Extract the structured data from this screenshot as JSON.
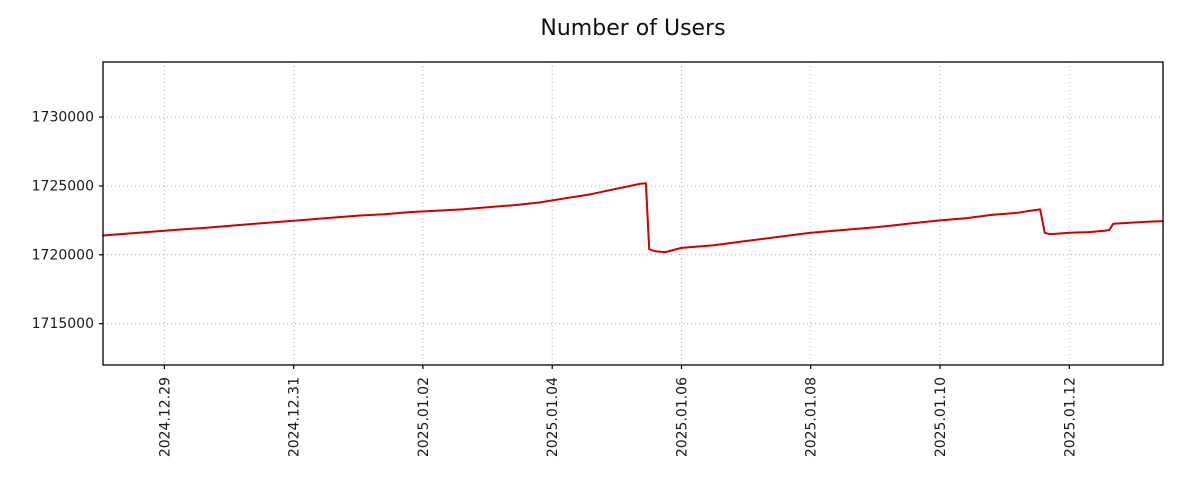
{
  "chart_data": {
    "type": "line",
    "title": "Number of Users",
    "xlabel": "",
    "ylabel": "",
    "legend_position": "none",
    "grid": "dotted",
    "grid_color": "#b0b0b0",
    "frame_color": "#000000",
    "background": "#ffffff",
    "x_unit": "days since 2024-12-28 00:00",
    "xlim": [
      0.05,
      16.45
    ],
    "ylim": [
      1712000,
      1734000
    ],
    "y_ticks": [
      1715000,
      1720000,
      1725000,
      1730000
    ],
    "x_ticks": [
      {
        "pos": 1,
        "label": "2024.12.29"
      },
      {
        "pos": 3,
        "label": "2024.12.31"
      },
      {
        "pos": 5,
        "label": "2025.01.02"
      },
      {
        "pos": 7,
        "label": "2025.01.04"
      },
      {
        "pos": 9,
        "label": "2025.01.06"
      },
      {
        "pos": 11,
        "label": "2025.01.08"
      },
      {
        "pos": 13,
        "label": "2025.01.10"
      },
      {
        "pos": 15,
        "label": "2025.01.12"
      }
    ],
    "series": [
      {
        "name": "Number of Users",
        "color": "#cc0000",
        "line_width": 2,
        "points": [
          [
            0.05,
            1721400
          ],
          [
            0.3,
            1721500
          ],
          [
            0.6,
            1721600
          ],
          [
            1.0,
            1721750
          ],
          [
            1.3,
            1721850
          ],
          [
            1.6,
            1721950
          ],
          [
            2.0,
            1722100
          ],
          [
            2.4,
            1722250
          ],
          [
            2.8,
            1722400
          ],
          [
            3.2,
            1722550
          ],
          [
            3.6,
            1722700
          ],
          [
            4.0,
            1722850
          ],
          [
            4.4,
            1722950
          ],
          [
            4.8,
            1723100
          ],
          [
            5.2,
            1723200
          ],
          [
            5.6,
            1723300
          ],
          [
            6.0,
            1723450
          ],
          [
            6.4,
            1723600
          ],
          [
            6.8,
            1723800
          ],
          [
            7.2,
            1724100
          ],
          [
            7.6,
            1724400
          ],
          [
            8.0,
            1724800
          ],
          [
            8.2,
            1725000
          ],
          [
            8.35,
            1725150
          ],
          [
            8.45,
            1725200
          ],
          [
            8.5,
            1720400
          ],
          [
            8.6,
            1720250
          ],
          [
            8.75,
            1720200
          ],
          [
            9.0,
            1720500
          ],
          [
            9.5,
            1720700
          ],
          [
            10.0,
            1721000
          ],
          [
            10.5,
            1721300
          ],
          [
            11.0,
            1721600
          ],
          [
            11.5,
            1721800
          ],
          [
            12.0,
            1722000
          ],
          [
            12.5,
            1722250
          ],
          [
            13.0,
            1722500
          ],
          [
            13.4,
            1722650
          ],
          [
            13.8,
            1722900
          ],
          [
            14.2,
            1723050
          ],
          [
            14.4,
            1723200
          ],
          [
            14.55,
            1723300
          ],
          [
            14.62,
            1721600
          ],
          [
            14.7,
            1721500
          ],
          [
            15.0,
            1721600
          ],
          [
            15.3,
            1721650
          ],
          [
            15.55,
            1721750
          ],
          [
            15.62,
            1721800
          ],
          [
            15.68,
            1722250
          ],
          [
            16.0,
            1722350
          ],
          [
            16.2,
            1722400
          ],
          [
            16.45,
            1722450
          ]
        ]
      }
    ]
  }
}
